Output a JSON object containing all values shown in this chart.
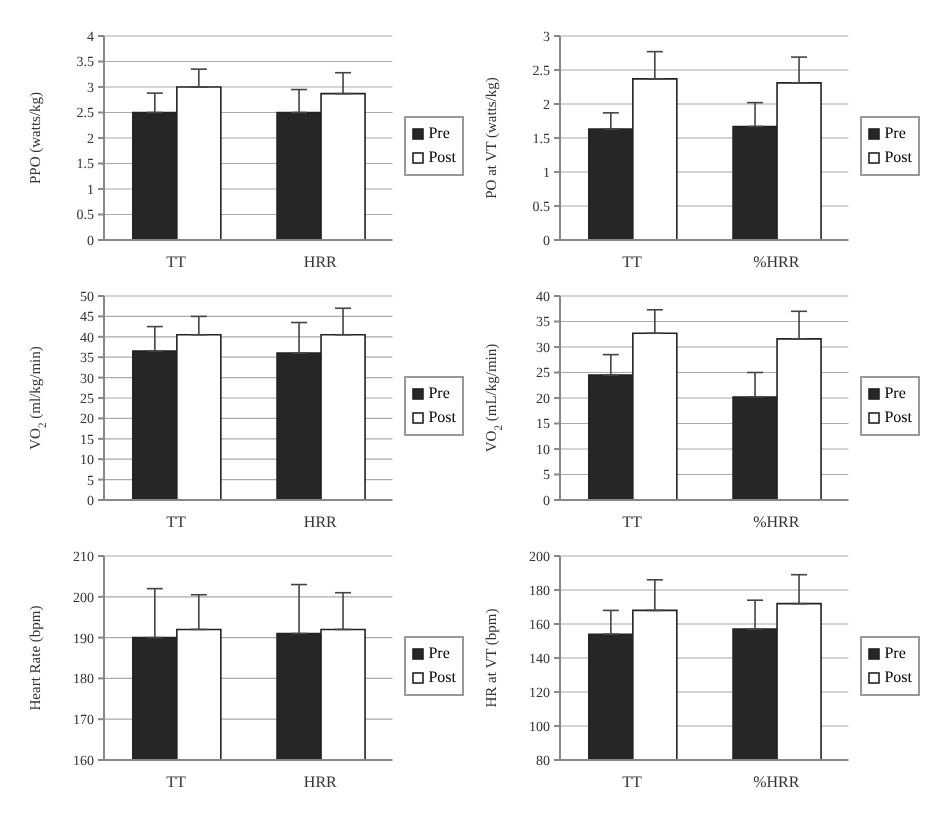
{
  "chart_data": [
    {
      "type": "bar",
      "ylabel": "PPO (watts/kg)",
      "categories": [
        "TT",
        "HRR"
      ],
      "ylim": [
        0,
        4
      ],
      "yticks": [
        0,
        0.5,
        1,
        1.5,
        2,
        2.5,
        3,
        3.5,
        4
      ],
      "grid": "y",
      "legend": "right",
      "series": [
        {
          "name": "Pre",
          "color": "#262626",
          "values": [
            2.5,
            2.5
          ],
          "errors": [
            [
              2.5,
              2.88
            ],
            [
              2.5,
              2.95
            ]
          ]
        },
        {
          "name": "Post",
          "color": "#ffffff",
          "values": [
            3.0,
            2.87
          ],
          "errors": [
            [
              3.0,
              3.35
            ],
            [
              2.87,
              3.28
            ]
          ]
        }
      ]
    },
    {
      "type": "bar",
      "ylabel": "PO at VT (watts/kg)",
      "categories": [
        "TT",
        "%HRR"
      ],
      "ylim": [
        0,
        3
      ],
      "yticks": [
        0,
        0.5,
        1,
        1.5,
        2,
        2.5,
        3
      ],
      "grid": "y",
      "legend": "right",
      "series": [
        {
          "name": "Pre",
          "color": "#262626",
          "values": [
            1.63,
            1.67
          ],
          "errors": [
            [
              1.63,
              1.87
            ],
            [
              1.67,
              2.02
            ]
          ]
        },
        {
          "name": "Post",
          "color": "#ffffff",
          "values": [
            2.37,
            2.31
          ],
          "errors": [
            [
              2.37,
              2.77
            ],
            [
              2.31,
              2.69
            ]
          ]
        }
      ]
    },
    {
      "type": "bar",
      "ylabel": "VO$_{2}$ (ml/kg/min)",
      "categories": [
        "TT",
        "HRR"
      ],
      "ylim": [
        0,
        50
      ],
      "yticks": [
        0,
        5,
        10,
        15,
        20,
        25,
        30,
        35,
        40,
        45,
        50
      ],
      "grid": "y",
      "legend": "right",
      "series": [
        {
          "name": "Pre",
          "color": "#262626",
          "values": [
            36.5,
            36
          ],
          "errors": [
            [
              36.5,
              42.5
            ],
            [
              36,
              43.5
            ]
          ]
        },
        {
          "name": "Post",
          "color": "#ffffff",
          "values": [
            40.5,
            40.5
          ],
          "errors": [
            [
              40.5,
              45
            ],
            [
              40.5,
              47
            ]
          ]
        }
      ]
    },
    {
      "type": "bar",
      "ylabel": "VO$_{2}$ (mL/kg/min)",
      "categories": [
        "TT",
        "%HRR"
      ],
      "ylim": [
        0,
        40
      ],
      "yticks": [
        0,
        5,
        10,
        15,
        20,
        25,
        30,
        35,
        40
      ],
      "grid": "y",
      "legend": "right",
      "series": [
        {
          "name": "Pre",
          "color": "#262626",
          "values": [
            24.5,
            20.2
          ],
          "errors": [
            [
              24.5,
              28.5
            ],
            [
              20.2,
              25
            ]
          ]
        },
        {
          "name": "Post",
          "color": "#ffffff",
          "values": [
            32.7,
            31.6
          ],
          "errors": [
            [
              32.7,
              37.3
            ],
            [
              31.6,
              37
            ]
          ]
        }
      ]
    },
    {
      "type": "bar",
      "ylabel": "Heart Rate (bpm)",
      "categories": [
        "TT",
        "HRR"
      ],
      "ylim": [
        160,
        210
      ],
      "yticks": [
        160,
        170,
        180,
        190,
        200,
        210
      ],
      "grid": "y",
      "legend": "right",
      "series": [
        {
          "name": "Pre",
          "color": "#262626",
          "values": [
            190,
            191
          ],
          "errors": [
            [
              190,
              202
            ],
            [
              191,
              203
            ]
          ]
        },
        {
          "name": "Post",
          "color": "#ffffff",
          "values": [
            192,
            192
          ],
          "errors": [
            [
              192,
              200.5
            ],
            [
              192,
              201
            ]
          ]
        }
      ]
    },
    {
      "type": "bar",
      "ylabel": "HR at VT (bpm)",
      "categories": [
        "TT",
        "%HRR"
      ],
      "ylim": [
        80,
        200
      ],
      "yticks": [
        80,
        100,
        120,
        140,
        160,
        180,
        200
      ],
      "grid": "y",
      "legend": "right",
      "series": [
        {
          "name": "Pre",
          "color": "#262626",
          "values": [
            154,
            157
          ],
          "errors": [
            [
              154,
              168
            ],
            [
              157,
              174
            ]
          ]
        },
        {
          "name": "Post",
          "color": "#ffffff",
          "values": [
            168,
            172
          ],
          "errors": [
            [
              168,
              186
            ],
            [
              172,
              189
            ]
          ]
        }
      ]
    }
  ]
}
